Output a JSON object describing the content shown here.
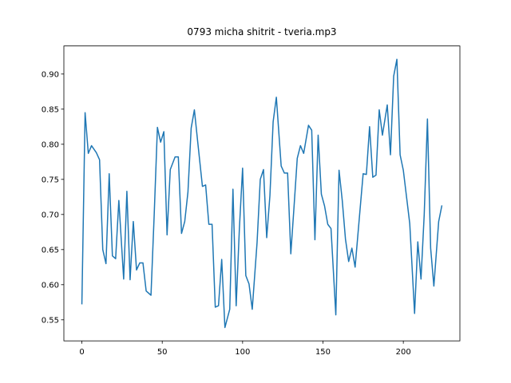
{
  "chart_data": {
    "type": "line",
    "title": "0793 micha shitrit - tveria.mp3",
    "x": [
      0,
      2,
      4,
      6,
      9,
      11,
      13,
      15,
      17,
      19,
      21,
      23,
      26,
      28,
      30,
      32,
      34,
      36,
      38,
      40,
      43,
      45,
      47,
      49,
      51,
      53,
      55,
      58,
      60,
      62,
      64,
      66,
      68,
      70,
      72,
      75,
      77,
      79,
      81,
      83,
      85,
      87,
      89,
      92,
      94,
      96,
      98,
      100,
      102,
      104,
      106,
      109,
      111,
      113,
      115,
      117,
      119,
      121,
      124,
      126,
      128,
      130,
      132,
      134,
      136,
      138,
      141,
      143,
      145,
      147,
      149,
      151,
      153,
      155,
      158,
      160,
      162,
      164,
      166,
      168,
      170,
      173,
      175,
      177,
      179,
      181,
      183,
      185,
      187,
      190,
      192,
      194,
      196,
      198,
      200,
      202,
      204,
      207,
      209,
      211,
      213,
      215,
      217,
      219,
      222,
      224
    ],
    "series": [
      {
        "color": "#1f77b4",
        "values": [
          0.572,
          0.845,
          0.787,
          0.798,
          0.788,
          0.778,
          0.65,
          0.63,
          0.758,
          0.641,
          0.637,
          0.72,
          0.608,
          0.733,
          0.607,
          0.69,
          0.621,
          0.631,
          0.631,
          0.591,
          0.585,
          0.7,
          0.824,
          0.803,
          0.818,
          0.671,
          0.764,
          0.782,
          0.782,
          0.673,
          0.69,
          0.732,
          0.823,
          0.849,
          0.805,
          0.74,
          0.742,
          0.686,
          0.686,
          0.568,
          0.57,
          0.636,
          0.539,
          0.565,
          0.736,
          0.57,
          0.68,
          0.766,
          0.613,
          0.601,
          0.565,
          0.66,
          0.75,
          0.764,
          0.667,
          0.727,
          0.832,
          0.867,
          0.769,
          0.759,
          0.759,
          0.644,
          0.711,
          0.78,
          0.798,
          0.787,
          0.827,
          0.82,
          0.664,
          0.813,
          0.729,
          0.712,
          0.686,
          0.68,
          0.557,
          0.763,
          0.72,
          0.665,
          0.633,
          0.652,
          0.625,
          0.705,
          0.758,
          0.757,
          0.825,
          0.753,
          0.756,
          0.849,
          0.813,
          0.856,
          0.785,
          0.897,
          0.921,
          0.785,
          0.763,
          0.725,
          0.687,
          0.559,
          0.661,
          0.608,
          0.7,
          0.836,
          0.652,
          0.598,
          0.69,
          0.713
        ]
      }
    ],
    "xlim": [
      -11.2,
      235.2
    ],
    "ylim": [
      0.52,
      0.94
    ],
    "xticks": [
      0,
      50,
      100,
      150,
      200
    ],
    "yticks": [
      0.55,
      {
        "value": 0.6,
        "label": "0.60"
      },
      0.65,
      {
        "value": 0.7,
        "label": "0.70"
      },
      0.75,
      {
        "value": 0.8,
        "label": "0.80"
      },
      0.85,
      {
        "value": 0.9,
        "label": "0.90"
      }
    ]
  }
}
